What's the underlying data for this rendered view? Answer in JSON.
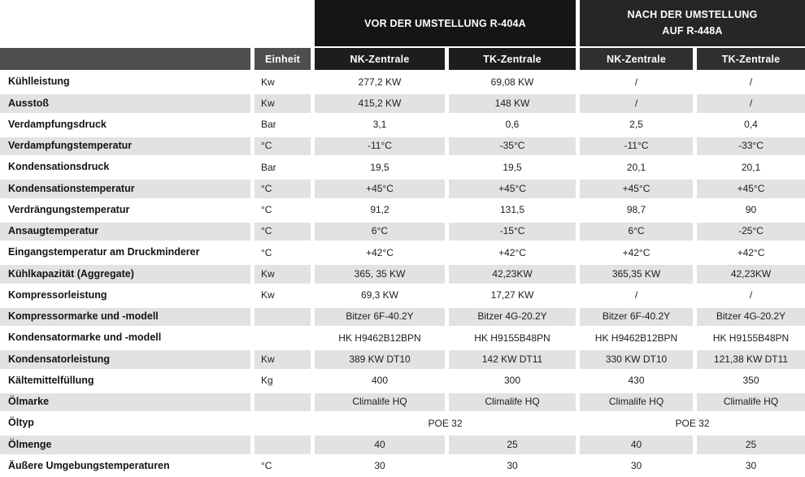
{
  "colors": {
    "group_vor_bg": "#151515",
    "group_nach_bg": "#262626",
    "subheader_vor_bg": "#1d1d1d",
    "subheader_nach_bg": "#2f2f2f",
    "unit_header_bg": "#4e4e4e",
    "stripe_gray": "#e2e2e2",
    "header_text": "#ffffff",
    "body_text": "#1d1d1d"
  },
  "chart_data": {
    "type": "table",
    "col_groups": [
      {
        "label": "VOR DER UMSTELLUNG R-404A",
        "label_lines": [
          "VOR DER UMSTELLUNG R-404A"
        ]
      },
      {
        "label": "NACH DER UMSTELLUNG AUF R-448A",
        "label_lines": [
          "NACH DER UMSTELLUNG",
          "AUF R-448A"
        ]
      }
    ],
    "unit_header": "Einheit",
    "sub_columns": [
      "NK-Zentrale",
      "TK-Zentrale",
      "NK-Zentrale",
      "TK-Zentrale"
    ],
    "rows": [
      {
        "label": "Kühlleistung",
        "unit": "Kw",
        "values": [
          "277,2 KW",
          "69,08 KW",
          "/",
          "/"
        ]
      },
      {
        "label": "Ausstoß",
        "unit": "Kw",
        "values": [
          "415,2 KW",
          "148 KW",
          "/",
          "/"
        ]
      },
      {
        "label": "Verdampfungsdruck",
        "unit": "Bar",
        "values": [
          "3,1",
          "0,6",
          "2,5",
          "0,4"
        ]
      },
      {
        "label": "Verdampfungstemperatur",
        "unit": "°C",
        "values": [
          "-11°C",
          "-35°C",
          "-11°C",
          "-33°C"
        ]
      },
      {
        "label": "Kondensationsdruck",
        "unit": "Bar",
        "values": [
          "19,5",
          "19,5",
          "20,1",
          "20,1"
        ]
      },
      {
        "label": "Kondensationstemperatur",
        "unit": "°C",
        "values": [
          "+45°C",
          "+45°C",
          "+45°C",
          "+45°C"
        ]
      },
      {
        "label": "Verdrängungstemperatur",
        "unit": "°C",
        "values": [
          "91,2",
          "131,5",
          "98,7",
          "90"
        ]
      },
      {
        "label": "Ansaugtemperatur",
        "unit": "°C",
        "values": [
          "6°C",
          "-15°C",
          "6°C",
          "-25°C"
        ]
      },
      {
        "label": "Eingangstemperatur am Druckminderer",
        "unit": "°C",
        "values": [
          "+42°C",
          "+42°C",
          "+42°C",
          "+42°C"
        ]
      },
      {
        "label": "Kühlkapazität (Aggregate)",
        "unit": "Kw",
        "values": [
          "365, 35 KW",
          "42,23KW",
          "365,35 KW",
          "42,23KW"
        ]
      },
      {
        "label": "Kompressorleistung",
        "unit": "Kw",
        "values": [
          "69,3 KW",
          "17,27 KW",
          "/",
          "/"
        ]
      },
      {
        "label": "Kompressormarke und -modell",
        "unit": "",
        "values": [
          "Bitzer 6F-40.2Y",
          "Bitzer 4G-20.2Y",
          "Bitzer 6F-40.2Y",
          "Bitzer 4G-20.2Y"
        ]
      },
      {
        "label": "Kondensatormarke und -modell",
        "unit": "",
        "values": [
          "HK H9462B12BPN",
          "HK H9155B48PN",
          "HK H9462B12BPN",
          "HK H9155B48PN"
        ]
      },
      {
        "label": "Kondensatorleistung",
        "unit": "Kw",
        "values": [
          "389 KW DT10",
          "142 KW DT11",
          "330 KW DT10",
          "121,38 KW DT11"
        ]
      },
      {
        "label": "Kältemittelfüllung",
        "unit": "Kg",
        "values": [
          "400",
          "300",
          "430",
          "350"
        ]
      },
      {
        "label": "Ölmarke",
        "unit": "",
        "values": [
          "Climalife HQ",
          "Climalife HQ",
          "Climalife HQ",
          "Climalife HQ"
        ]
      },
      {
        "label": "Öltyp",
        "unit": "",
        "span": true,
        "values": [
          "POE 32",
          "POE 32"
        ]
      },
      {
        "label": "Ölmenge",
        "unit": "",
        "values": [
          "40",
          "25",
          "40",
          "25"
        ]
      },
      {
        "label": "Äußere Umgebungstemperaturen",
        "unit": "°C",
        "values": [
          "30",
          "30",
          "30",
          "30"
        ]
      }
    ]
  }
}
